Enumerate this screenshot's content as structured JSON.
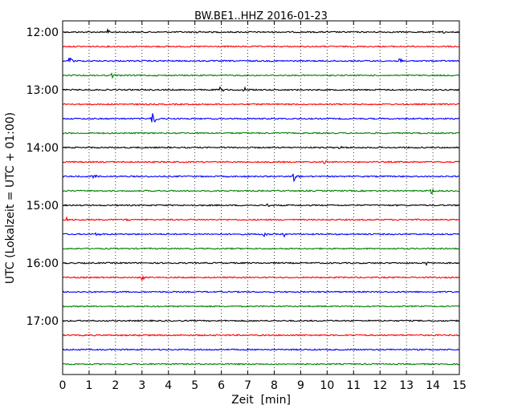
{
  "chart_data": {
    "type": "line",
    "title": "BW.BE1..HHZ 2016-01-23",
    "xlabel": "Zeit  [min]",
    "ylabel": "UTC (Lokalzeit = UTC + 01:00)",
    "xlim": [
      0,
      15
    ],
    "x_ticks": [
      0,
      1,
      2,
      3,
      4,
      5,
      6,
      7,
      8,
      9,
      10,
      11,
      12,
      13,
      14,
      15
    ],
    "x_tick_labels": [
      "0",
      "1",
      "2",
      "3",
      "4",
      "5",
      "6",
      "7",
      "8",
      "9",
      "10",
      "11",
      "12",
      "13",
      "14",
      "15"
    ],
    "y_tick_labels": [
      "12:00",
      "13:00",
      "14:00",
      "15:00",
      "16:00",
      "17:00"
    ],
    "trace_minutes": 15,
    "trace_colors": [
      "#000000",
      "#ff0000",
      "#0000ff",
      "#008000"
    ],
    "vertical_grid": "dotted",
    "series": [
      {
        "start": "12:00",
        "events": [
          {
            "t": 1.7,
            "a": 0.35
          },
          {
            "t": 5.05,
            "a": 0.2
          },
          {
            "t": 14.4,
            "a": 0.15
          }
        ]
      },
      {
        "start": "12:15",
        "events": []
      },
      {
        "start": "12:30",
        "events": [
          {
            "t": 0.25,
            "a": 0.45
          },
          {
            "t": 12.75,
            "a": 0.35
          }
        ]
      },
      {
        "start": "12:45",
        "events": [
          {
            "t": 1.85,
            "a": 0.3
          }
        ]
      },
      {
        "start": "13:00",
        "events": [
          {
            "t": 5.95,
            "a": 0.3
          },
          {
            "t": 6.85,
            "a": 0.4
          }
        ]
      },
      {
        "start": "13:15",
        "events": []
      },
      {
        "start": "13:30",
        "events": [
          {
            "t": 3.4,
            "a": 1.0
          }
        ]
      },
      {
        "start": "13:45",
        "events": []
      },
      {
        "start": "14:00",
        "events": [
          {
            "t": 5.8,
            "a": 0.15
          },
          {
            "t": 10.45,
            "a": 0.15
          }
        ]
      },
      {
        "start": "14:15",
        "events": [
          {
            "t": 9.85,
            "a": 0.35
          }
        ]
      },
      {
        "start": "14:30",
        "events": [
          {
            "t": 1.15,
            "a": 0.3
          },
          {
            "t": 8.7,
            "a": 0.75
          }
        ]
      },
      {
        "start": "14:45",
        "events": [
          {
            "t": 13.95,
            "a": 0.45
          }
        ]
      },
      {
        "start": "15:00",
        "events": [
          {
            "t": 7.75,
            "a": 0.25
          }
        ]
      },
      {
        "start": "15:15",
        "events": [
          {
            "t": 0.15,
            "a": 0.2
          },
          {
            "t": 2.45,
            "a": 0.2
          }
        ]
      },
      {
        "start": "15:30",
        "events": [
          {
            "t": 1.25,
            "a": 0.3
          },
          {
            "t": 7.6,
            "a": 0.25
          },
          {
            "t": 8.35,
            "a": 0.3
          }
        ]
      },
      {
        "start": "15:45",
        "events": []
      },
      {
        "start": "16:00",
        "events": [
          {
            "t": 13.75,
            "a": 0.2
          }
        ]
      },
      {
        "start": "16:15",
        "events": [
          {
            "t": 3.0,
            "a": 0.3
          }
        ]
      },
      {
        "start": "16:30",
        "events": []
      },
      {
        "start": "16:45",
        "events": []
      },
      {
        "start": "17:00",
        "events": []
      },
      {
        "start": "17:15",
        "events": [
          {
            "t": 2.75,
            "a": 0.15
          }
        ]
      },
      {
        "start": "17:30",
        "events": []
      },
      {
        "start": "17:45",
        "events": []
      }
    ]
  }
}
